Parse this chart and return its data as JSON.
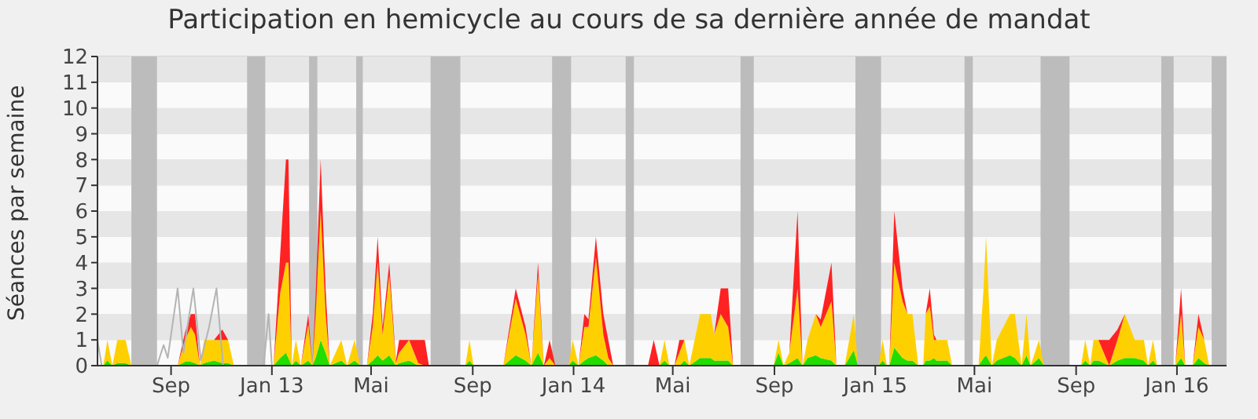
{
  "chart_data": {
    "type": "area",
    "title": "Participation en hemicycle au cours de sa dernière année de mandat",
    "ylabel": "Séances par semaine",
    "stacked": true,
    "grid": "y",
    "x": [
      "2012-06-04",
      "2012-06-11",
      "2012-06-16",
      "2012-06-22",
      "2012-06-28",
      "2012-07-08",
      "2012-07-15",
      "2012-09-09",
      "2012-09-18",
      "2012-09-25",
      "2012-09-30",
      "2012-10-06",
      "2012-10-11",
      "2012-10-23",
      "2012-11-02",
      "2012-11-09",
      "2012-11-16",
      "2013-01-03",
      "2013-01-11",
      "2013-01-18",
      "2013-01-21",
      "2013-01-25",
      "2013-01-30",
      "2013-02-05",
      "2013-02-14",
      "2013-02-19",
      "2013-02-23",
      "2013-03-01",
      "2013-03-07",
      "2013-03-12",
      "2013-03-26",
      "2013-04-02",
      "2013-04-11",
      "2013-04-18",
      "2013-04-26",
      "2013-05-03",
      "2013-05-09",
      "2013-05-15",
      "2013-05-23",
      "2013-05-31",
      "2013-06-04",
      "2013-06-16",
      "2013-06-27",
      "2013-07-05",
      "2013-07-10",
      "2013-08-23",
      "2013-08-28",
      "2013-09-02",
      "2013-10-08",
      "2013-10-23",
      "2013-11-04",
      "2013-11-11",
      "2013-11-19",
      "2013-11-26",
      "2013-12-03",
      "2013-12-10",
      "2013-12-26",
      "2013-12-31",
      "2014-01-07",
      "2014-01-14",
      "2014-01-19",
      "2014-01-28",
      "2014-02-06",
      "2014-02-12",
      "2014-02-18",
      "2014-04-01",
      "2014-04-08",
      "2014-04-15",
      "2014-04-21",
      "2014-04-27",
      "2014-05-03",
      "2014-05-09",
      "2014-05-15",
      "2014-05-21",
      "2014-06-03",
      "2014-06-16",
      "2014-06-20",
      "2014-06-28",
      "2014-07-07",
      "2014-07-13",
      "2014-08-31",
      "2014-09-06",
      "2014-09-12",
      "2014-09-19",
      "2014-09-29",
      "2014-10-05",
      "2014-10-11",
      "2014-10-21",
      "2014-10-27",
      "2014-11-09",
      "2014-11-15",
      "2014-11-25",
      "2014-12-06",
      "2014-12-11",
      "2015-01-05",
      "2015-01-10",
      "2015-01-15",
      "2015-01-18",
      "2015-01-24",
      "2015-02-03",
      "2015-02-09",
      "2015-02-15",
      "2015-02-22",
      "2015-02-28",
      "2015-03-03",
      "2015-03-08",
      "2015-03-13",
      "2015-03-16",
      "2015-03-29",
      "2015-04-04",
      "2015-05-06",
      "2015-05-12",
      "2015-05-15",
      "2015-05-22",
      "2015-05-28",
      "2015-06-13",
      "2015-06-19",
      "2015-06-27",
      "2015-07-03",
      "2015-07-08",
      "2015-07-18",
      "2015-07-24",
      "2015-09-07",
      "2015-09-12",
      "2015-09-18",
      "2015-09-22",
      "2015-09-28",
      "2015-10-11",
      "2015-10-21",
      "2015-10-30",
      "2015-11-11",
      "2015-11-22",
      "2015-11-27",
      "2015-12-03",
      "2015-12-08",
      "2015-12-30",
      "2016-01-06",
      "2016-01-11",
      "2016-01-20",
      "2016-01-27",
      "2016-02-03",
      "2016-02-09",
      "2016-03-01"
    ],
    "series": [
      {
        "color": "#22dd00",
        "values": [
          0,
          0,
          0.2,
          0,
          0.1,
          0.1,
          0,
          0,
          0.15,
          0.15,
          0.1,
          0,
          0.1,
          0.2,
          0.1,
          0.1,
          0,
          0,
          0.3,
          0.5,
          0.3,
          0,
          0.2,
          0,
          0.2,
          0,
          0.3,
          1,
          0.5,
          0,
          0.2,
          0,
          0.2,
          0,
          0,
          0.2,
          0.4,
          0.2,
          0.4,
          0,
          0.1,
          0.2,
          0,
          0,
          0,
          0,
          0.2,
          0,
          0,
          0.4,
          0.2,
          0,
          0.5,
          0,
          0,
          0,
          0,
          0.2,
          0,
          0.2,
          0.3,
          0.4,
          0.2,
          0,
          0,
          0,
          0,
          0,
          0.2,
          0,
          0,
          0,
          0.2,
          0,
          0.3,
          0.3,
          0.2,
          0.2,
          0.2,
          0,
          0,
          0.5,
          0,
          0.1,
          0.3,
          0,
          0.3,
          0.4,
          0.3,
          0.2,
          0,
          0,
          0.6,
          0,
          0,
          0.2,
          0,
          0,
          0.7,
          0.3,
          0.2,
          0.2,
          0,
          0,
          0.2,
          0.2,
          0.3,
          0.2,
          0.2,
          0,
          0,
          0.3,
          0.4,
          0,
          0.2,
          0.4,
          0.3,
          0,
          0.4,
          0,
          0.3,
          0,
          0,
          0.2,
          0,
          0.2,
          0.2,
          0,
          0.2,
          0.3,
          0.3,
          0.2,
          0,
          0.2,
          0,
          0,
          0.3,
          0,
          0,
          0.3,
          0.1,
          0,
          0
        ]
      },
      {
        "color": "#ffd000",
        "values": [
          0,
          0,
          0.8,
          0,
          0.9,
          0.9,
          0,
          0,
          0.85,
          1.35,
          1.1,
          0,
          0.9,
          0.8,
          0.9,
          0.9,
          0,
          0,
          2.5,
          3.5,
          3.7,
          0,
          0.8,
          0,
          1.4,
          0,
          1.7,
          5,
          1.5,
          0,
          0.8,
          0,
          0.8,
          0,
          0,
          1.3,
          3.6,
          1,
          3.1,
          0.1,
          0.4,
          0.8,
          0.1,
          0,
          0,
          0,
          0.8,
          0,
          0,
          2.2,
          1,
          0,
          3,
          0,
          0.3,
          0,
          0,
          0.8,
          0,
          1.3,
          1.2,
          3.8,
          1,
          0.3,
          0,
          0,
          0,
          0,
          0.8,
          0,
          0,
          0.5,
          0.8,
          0,
          1.7,
          1.7,
          1,
          1.8,
          1.3,
          0,
          0,
          0.5,
          0,
          0.4,
          2.7,
          0,
          0.7,
          1.6,
          1.2,
          2.3,
          0,
          0,
          1.4,
          0,
          0,
          0.8,
          0,
          0,
          3.3,
          2.2,
          1.8,
          1.8,
          0,
          0,
          1.8,
          2.1,
          0.7,
          0.8,
          0.8,
          0,
          0,
          2.7,
          4.6,
          0,
          0.8,
          1.6,
          1.7,
          0,
          1.6,
          0,
          0.7,
          0,
          0,
          0.8,
          0,
          0.8,
          0.8,
          0,
          0.8,
          1.7,
          0.7,
          0.8,
          0,
          0.8,
          0,
          0,
          1.7,
          0,
          0,
          1.2,
          0.9,
          0,
          0
        ]
      },
      {
        "color": "#ff2222",
        "values": [
          0,
          0,
          0,
          0,
          0,
          0,
          0,
          0,
          0.3,
          0.5,
          0.8,
          0,
          0,
          0,
          0.4,
          0,
          0,
          0,
          1.5,
          4,
          4,
          0,
          0,
          0,
          0.4,
          0,
          0.8,
          2,
          1,
          0,
          0,
          0,
          0,
          0,
          0,
          0.5,
          1,
          0.3,
          0.5,
          0.1,
          0.5,
          0,
          0.9,
          1,
          0,
          0,
          0,
          0,
          0,
          0.4,
          0.3,
          0,
          0.5,
          0,
          0.7,
          0,
          0,
          0,
          0,
          0.5,
          0.3,
          0.8,
          0.8,
          0.7,
          0,
          0,
          1,
          0,
          0,
          0,
          0,
          0.5,
          0,
          0,
          0,
          0,
          0,
          1,
          1.5,
          0,
          0,
          0,
          0,
          0,
          3,
          0,
          0,
          0,
          0.3,
          1.5,
          0,
          0,
          0,
          0,
          0,
          0,
          0,
          0,
          2,
          0.5,
          0,
          0,
          0,
          0,
          0,
          0.7,
          0.2,
          0,
          0,
          0,
          0,
          0,
          0,
          0,
          0,
          0,
          0,
          0,
          0,
          0,
          0,
          0,
          0,
          0,
          0,
          0,
          0,
          1,
          0.4,
          0,
          0,
          0,
          0,
          0,
          0,
          0,
          1,
          0,
          0,
          0.5,
          0,
          0,
          0
        ]
      },
      {
        "type": "line",
        "color": "#b4b4b4",
        "x": [
          "2012-06-04",
          "2012-06-09",
          "2012-08-15",
          "2012-08-23",
          "2012-08-28",
          "2012-09-09",
          "2012-09-16",
          "2012-09-28",
          "2012-10-07",
          "2012-10-17",
          "2012-10-26",
          "2012-11-03",
          "2012-12-22",
          "2012-12-28",
          "2013-01-01"
        ],
        "values": [
          1,
          0,
          0,
          0.8,
          0.3,
          3,
          0.5,
          3,
          0.2,
          1.5,
          3,
          0,
          0,
          2,
          0
        ]
      }
    ],
    "bands": [
      {
        "axis": "x",
        "from": "2012-07-15",
        "to": "2012-08-15",
        "color": "#bcbcbc"
      },
      {
        "axis": "x",
        "from": "2012-12-02",
        "to": "2012-12-24",
        "color": "#bcbcbc"
      },
      {
        "axis": "x",
        "from": "2013-02-15",
        "to": "2013-02-25",
        "color": "#bcbcbc"
      },
      {
        "axis": "x",
        "from": "2013-04-13",
        "to": "2013-04-21",
        "color": "#bcbcbc"
      },
      {
        "axis": "x",
        "from": "2013-07-12",
        "to": "2013-08-17",
        "color": "#bcbcbc"
      },
      {
        "axis": "x",
        "from": "2013-12-06",
        "to": "2013-12-29",
        "color": "#bcbcbc"
      },
      {
        "axis": "x",
        "from": "2014-03-05",
        "to": "2014-03-15",
        "color": "#bcbcbc"
      },
      {
        "axis": "x",
        "from": "2014-07-22",
        "to": "2014-08-07",
        "color": "#bcbcbc"
      },
      {
        "axis": "x",
        "from": "2014-12-08",
        "to": "2015-01-08",
        "color": "#bcbcbc"
      },
      {
        "axis": "x",
        "from": "2015-04-19",
        "to": "2015-04-29",
        "color": "#bcbcbc"
      },
      {
        "axis": "x",
        "from": "2015-07-20",
        "to": "2015-08-24",
        "color": "#bcbcbc"
      },
      {
        "axis": "x",
        "from": "2015-12-13",
        "to": "2015-12-28",
        "color": "#bcbcbc"
      },
      {
        "axis": "x",
        "from": "2016-02-12",
        "to": "2016-03-01",
        "color": "#bcbcbc"
      }
    ],
    "xlim": [
      "2012-06-04",
      "2016-03-01"
    ],
    "xticks": [
      {
        "value": "2012-09-01",
        "label": "Sep"
      },
      {
        "value": "2013-01-01",
        "label": "Jan 13"
      },
      {
        "value": "2013-05-01",
        "label": "Mai"
      },
      {
        "value": "2013-09-01",
        "label": "Sep"
      },
      {
        "value": "2014-01-01",
        "label": "Jan 14"
      },
      {
        "value": "2014-05-01",
        "label": "Mai"
      },
      {
        "value": "2014-09-01",
        "label": "Sep"
      },
      {
        "value": "2015-01-01",
        "label": "Jan 15"
      },
      {
        "value": "2015-05-01",
        "label": "Mai"
      },
      {
        "value": "2015-09-01",
        "label": "Sep"
      },
      {
        "value": "2016-01-01",
        "label": "Jan 16"
      }
    ],
    "ylim": [
      0,
      12
    ],
    "yticks": [
      0,
      1,
      2,
      3,
      4,
      5,
      6,
      7,
      8,
      9,
      10,
      11,
      12
    ]
  }
}
